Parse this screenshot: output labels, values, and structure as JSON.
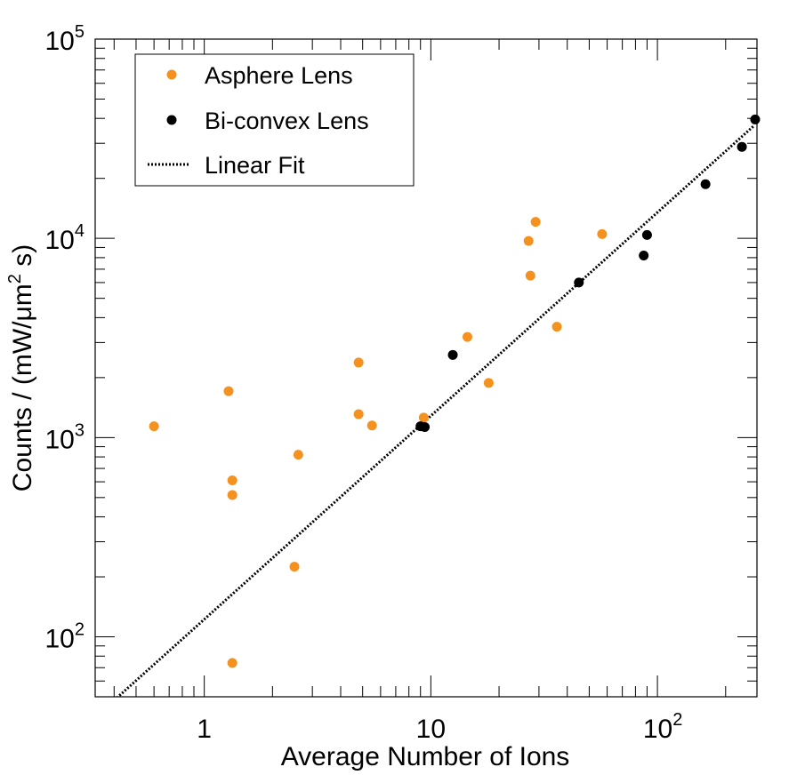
{
  "chart_data": {
    "type": "scatter",
    "title": "",
    "xlabel": "Average Number of Ions",
    "ylabel": "Counts / (mW/μm² s)",
    "ylabel_parts": {
      "prefix": "Counts / (mW/μm",
      "sup": "2",
      "suffix": " s)"
    },
    "x_scale": "log",
    "y_scale": "log",
    "xlim": [
      0.33,
      275
    ],
    "ylim": [
      50,
      100000
    ],
    "x_ticks": [
      {
        "value": 1,
        "base": "1",
        "exp": ""
      },
      {
        "value": 10,
        "base": "10",
        "exp": ""
      },
      {
        "value": 100,
        "base": "10",
        "exp": "2"
      }
    ],
    "y_ticks": [
      {
        "value": 100,
        "base": "10",
        "exp": "2"
      },
      {
        "value": 1000,
        "base": "10",
        "exp": "3"
      },
      {
        "value": 10000,
        "base": "10",
        "exp": "4"
      },
      {
        "value": 100000,
        "base": "10",
        "exp": "5"
      }
    ],
    "grid": false,
    "legend_position": "top-left",
    "series": [
      {
        "name": "Asphere Lens",
        "kind": "points",
        "color": "#f5911e",
        "points": [
          [
            0.6,
            1140
          ],
          [
            1.28,
            1710
          ],
          [
            1.33,
            610
          ],
          [
            1.33,
            515
          ],
          [
            1.33,
            74
          ],
          [
            2.5,
            225
          ],
          [
            2.6,
            820
          ],
          [
            4.8,
            2380
          ],
          [
            4.8,
            1310
          ],
          [
            5.5,
            1150
          ],
          [
            9.3,
            1260
          ],
          [
            14.5,
            3200
          ],
          [
            18.0,
            1880
          ],
          [
            27.0,
            9700
          ],
          [
            27.5,
            6500
          ],
          [
            29.0,
            12100
          ],
          [
            36.0,
            3600
          ],
          [
            57.0,
            10500
          ]
        ]
      },
      {
        "name": "Bi-convex Lens",
        "kind": "points",
        "color": "#000000",
        "points": [
          [
            9.0,
            1140
          ],
          [
            9.4,
            1130
          ],
          [
            12.5,
            2600
          ],
          [
            45.0,
            6000
          ],
          [
            87.0,
            8200
          ],
          [
            90.0,
            10400
          ],
          [
            163.0,
            18700
          ],
          [
            236.0,
            28800
          ],
          [
            270.0,
            39500
          ]
        ]
      },
      {
        "name": "Linear Fit",
        "kind": "line",
        "style": "dotted",
        "color": "#000000",
        "points": [
          [
            0.4,
            48
          ],
          [
            265.0,
            36500
          ]
        ]
      }
    ]
  }
}
